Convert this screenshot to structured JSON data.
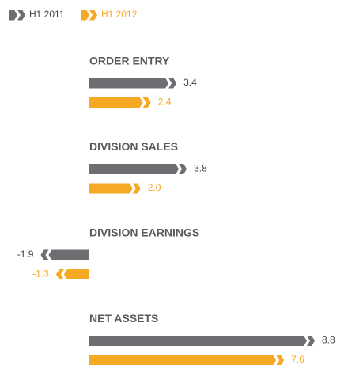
{
  "chart_data": {
    "type": "bar",
    "orientation": "horizontal",
    "legend": "top-left",
    "categories": [
      "ORDER ENTRY",
      "DIVISION SALES",
      "DIVISION EARNINGS",
      "NET ASSETS"
    ],
    "series": [
      {
        "name": "H1 2011",
        "color": "#6d6e71",
        "values": [
          3.4,
          3.8,
          -1.9,
          8.8
        ],
        "value_labels": [
          "3.4",
          "3.8",
          "-1.9",
          "8.8"
        ]
      },
      {
        "name": "H1 2012",
        "color": "#f6a924",
        "values": [
          2.4,
          2.0,
          -1.3,
          7.6
        ],
        "value_labels": [
          "2.4",
          "2.0",
          "-1.3",
          "7.6"
        ]
      }
    ]
  }
}
